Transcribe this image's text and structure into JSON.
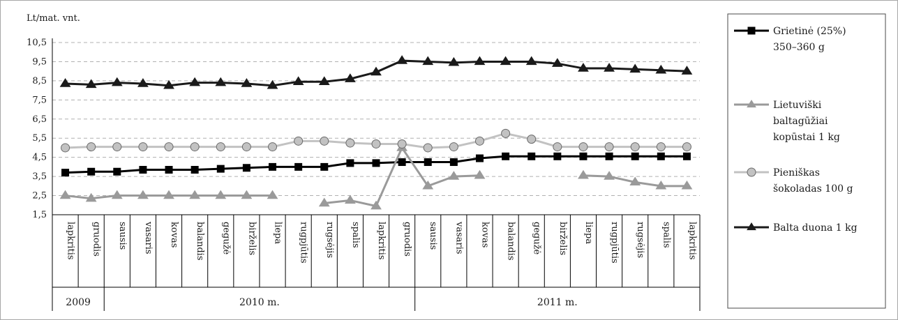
{
  "chart_data": {
    "type": "line",
    "ylabel": "Lt/mat. vnt.",
    "ylim": [
      1.5,
      10.5
    ],
    "yticks": [
      "1,5",
      "2,5",
      "3,5",
      "4,5",
      "5,5",
      "6,5",
      "7,5",
      "8,5",
      "9,5",
      "10,5"
    ],
    "grid": "horizontal dashed",
    "legend_position": "right",
    "categories": [
      "lapkritis",
      "gruodis",
      "sausis",
      "vasaris",
      "kovas",
      "balandis",
      "gegužė",
      "birželis",
      "liepa",
      "rugpjūtis",
      "rugsėjis",
      "spalis",
      "lapkritis",
      "gruodis",
      "sausis",
      "vasaris",
      "kovas",
      "balandis",
      "gegužė",
      "birželis",
      "liepa",
      "rugpjūtis",
      "rugsėjis",
      "spalis",
      "lapkritis"
    ],
    "year_groups": [
      {
        "label": "2009",
        "span": 2
      },
      {
        "label": "2010 m.",
        "span": 12
      },
      {
        "label": "2011 m.",
        "span": 11
      }
    ],
    "series": [
      {
        "name": "Grietinė (25%) 350–360 g",
        "color": "#000000",
        "marker": "square",
        "values": [
          3.7,
          3.75,
          3.75,
          3.85,
          3.85,
          3.85,
          3.9,
          3.95,
          4.0,
          4.0,
          4.0,
          4.2,
          4.2,
          4.25,
          4.25,
          4.25,
          4.45,
          4.55,
          4.55,
          4.55,
          4.55,
          4.55,
          4.55,
          4.55,
          4.55
        ]
      },
      {
        "name": "Lietuviški baltagūžiai kopūstai 1 kg",
        "color": "#9a9a9a",
        "marker": "triangle",
        "values": [
          2.5,
          2.35,
          2.5,
          2.5,
          2.5,
          2.5,
          2.5,
          2.5,
          2.5,
          null,
          2.1,
          2.25,
          1.95,
          5.0,
          3.0,
          3.5,
          3.55,
          null,
          null,
          null,
          3.55,
          3.5,
          3.2,
          3.0,
          3.0
        ]
      },
      {
        "name": "Pieniškas šokoladas 100 g",
        "color": "#c2c2c2",
        "marker": "circle",
        "values": [
          5.0,
          5.05,
          5.05,
          5.05,
          5.05,
          5.05,
          5.05,
          5.05,
          5.05,
          5.35,
          5.35,
          5.25,
          5.2,
          5.2,
          5.0,
          5.05,
          5.35,
          5.75,
          5.45,
          5.05,
          5.05,
          5.05,
          5.05,
          5.05,
          5.05
        ]
      },
      {
        "name": "Balta duona 1 kg",
        "color": "#1a1a1a",
        "marker": "triangle",
        "values": [
          8.35,
          8.3,
          8.4,
          8.35,
          8.25,
          8.4,
          8.4,
          8.35,
          8.25,
          8.45,
          8.45,
          8.6,
          8.95,
          9.55,
          9.5,
          9.45,
          9.5,
          9.5,
          9.5,
          9.4,
          9.15,
          9.15,
          9.1,
          9.05,
          9.0
        ]
      }
    ]
  },
  "legend": {
    "items": [
      {
        "lines": [
          "Grietinė (25%)",
          "350–360 g"
        ],
        "color": "#000000",
        "marker": "square"
      },
      {
        "lines": [
          "Lietuviški",
          "baltagūžiai",
          "kopūstai 1 kg"
        ],
        "color": "#9a9a9a",
        "marker": "triangle"
      },
      {
        "lines": [
          "Pieniškas",
          "šokoladas 100 g"
        ],
        "color": "#c2c2c2",
        "marker": "circle"
      },
      {
        "lines": [
          "Balta duona 1 kg"
        ],
        "color": "#1a1a1a",
        "marker": "triangle"
      }
    ]
  }
}
